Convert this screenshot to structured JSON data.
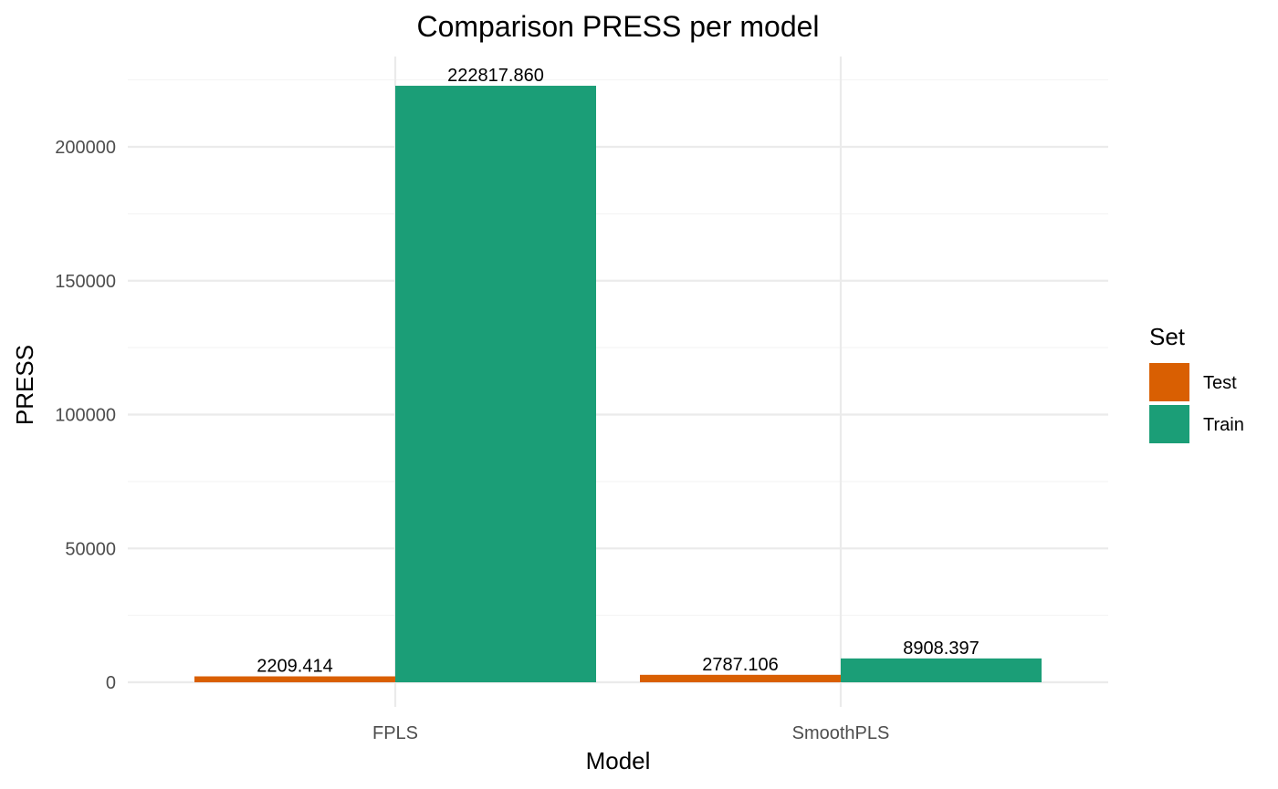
{
  "chart_data": {
    "type": "bar",
    "title": "Comparison PRESS per model",
    "xlabel": "Model",
    "ylabel": "PRESS",
    "categories": [
      "FPLS",
      "SmoothPLS"
    ],
    "series": [
      {
        "name": "Test",
        "color": "#d95f02",
        "values": [
          2209.414,
          2787.106
        ],
        "labels": [
          "2209.414",
          "2787.106"
        ]
      },
      {
        "name": "Train",
        "color": "#1b9e77",
        "values": [
          222817.86,
          8908.397
        ],
        "labels": [
          "222817.860",
          "8908.397"
        ]
      }
    ],
    "ylim": [
      0,
      230000
    ],
    "yticks": [
      0,
      50000,
      100000,
      150000,
      200000
    ],
    "ytick_labels": [
      "0",
      "50000",
      "100000",
      "150000",
      "200000"
    ],
    "grid": true,
    "legend": {
      "title": "Set",
      "position": "right"
    }
  }
}
